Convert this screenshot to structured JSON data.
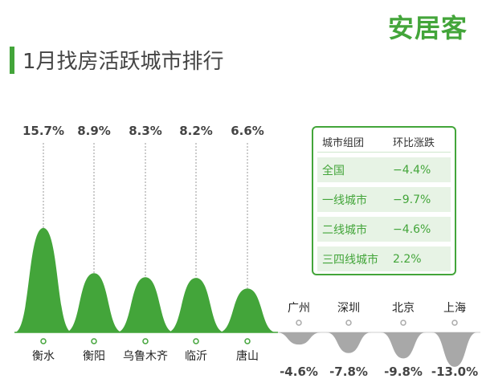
{
  "brand": "安居客",
  "title": "1月找房活跃城市排行",
  "colors": {
    "accent": "#43a53a",
    "positive": "#43a53a",
    "negative": "#a8a8a8",
    "text": "#444444"
  },
  "chart_data": {
    "type": "area",
    "title": "1月找房活跃城市排行",
    "unit": "%",
    "series": [
      {
        "name": "",
        "categories": [
          "衡水",
          "衡阳",
          "乌鲁木齐",
          "临沂",
          "唐山"
        ],
        "values": [
          15.7,
          8.9,
          8.3,
          8.2,
          6.6
        ],
        "value_labels": [
          "15.7%",
          "8.9%",
          "8.3%",
          "8.2%",
          "6.6%"
        ]
      },
      {
        "name": "",
        "categories": [
          "广州",
          "深圳",
          "北京",
          "上海"
        ],
        "values": [
          -4.6,
          -7.8,
          -9.8,
          -13.0
        ],
        "value_labels": [
          "-4.6%",
          "-7.8%",
          "-9.8%",
          "-13.0%"
        ]
      }
    ]
  },
  "table": {
    "headers": [
      "城市组团",
      "环比涨跌"
    ],
    "rows": [
      {
        "group": "全国",
        "change": "−4.4%"
      },
      {
        "group": "一线城市",
        "change": "−9.7%"
      },
      {
        "group": "二线城市",
        "change": "−4.6%"
      },
      {
        "group": "三四线城市",
        "change": "2.2%"
      }
    ]
  }
}
